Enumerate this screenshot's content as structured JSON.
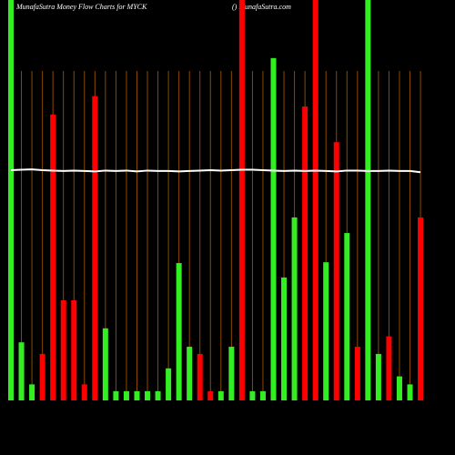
{
  "chart_data": {
    "type": "bar",
    "title": "MunafaSutra  Money Flow  Charts for MYCK",
    "subtitle": "() MunafaSutra.com",
    "categories": [
      null,
      null,
      null,
      null,
      null,
      null,
      null,
      null,
      null,
      null,
      null,
      null,
      null,
      null,
      null,
      null,
      null,
      null,
      null,
      null,
      null,
      null,
      null,
      null,
      null,
      null,
      null,
      null,
      null,
      null,
      null,
      null,
      null,
      null,
      null,
      null,
      null,
      null,
      null,
      null
    ],
    "values": [
      100,
      14.5,
      4,
      11.6,
      71.4,
      25,
      25,
      4,
      76,
      18,
      2.3,
      2.3,
      2.3,
      2.3,
      2.3,
      8,
      34.3,
      13.4,
      11.6,
      2.3,
      2.3,
      13.4,
      100,
      2.3,
      2.3,
      85.5,
      30.7,
      45.7,
      73.4,
      100,
      34.5,
      64.5,
      41.8,
      13.4,
      100,
      11.6,
      16,
      6,
      4,
      45.7
    ],
    "colors": [
      "#33ee22",
      "#33ee22",
      "#33ee22",
      "#ff0000",
      "#ff0000",
      "#ff0000",
      "#ff0000",
      "#ff0000",
      "#ff0000",
      "#33ee22",
      "#33ee22",
      "#33ee22",
      "#33ee22",
      "#33ee22",
      "#33ee22",
      "#33ee22",
      "#33ee22",
      "#33ee22",
      "#ff0000",
      "#ff0000",
      "#33ee22",
      "#33ee22",
      "#ff0000",
      "#33ee22",
      "#33ee22",
      "#33ee22",
      "#33ee22",
      "#33ee22",
      "#ff0000",
      "#ff0000",
      "#33ee22",
      "#ff0000",
      "#33ee22",
      "#ff0000",
      "#33ee22",
      "#33ee22",
      "#ff0000",
      "#33ee22",
      "#33ee22",
      "#ff0000"
    ],
    "line_values": [
      57.5,
      57.6,
      57.7,
      57.5,
      57.4,
      57.3,
      57.4,
      57.3,
      57.2,
      57.4,
      57.3,
      57.4,
      57.2,
      57.4,
      57.3,
      57.3,
      57.2,
      57.3,
      57.4,
      57.5,
      57.4,
      57.5,
      57.6,
      57.6,
      57.5,
      57.4,
      57.3,
      57.4,
      57.3,
      57.4,
      57.3,
      57.2,
      57.4,
      57.4,
      57.3,
      57.3,
      57.4,
      57.3,
      57.3,
      57.0
    ],
    "line_color": "#ffffff",
    "ylim": [
      0,
      100
    ],
    "grid_color": "#8b4a00",
    "background": "#000000"
  }
}
